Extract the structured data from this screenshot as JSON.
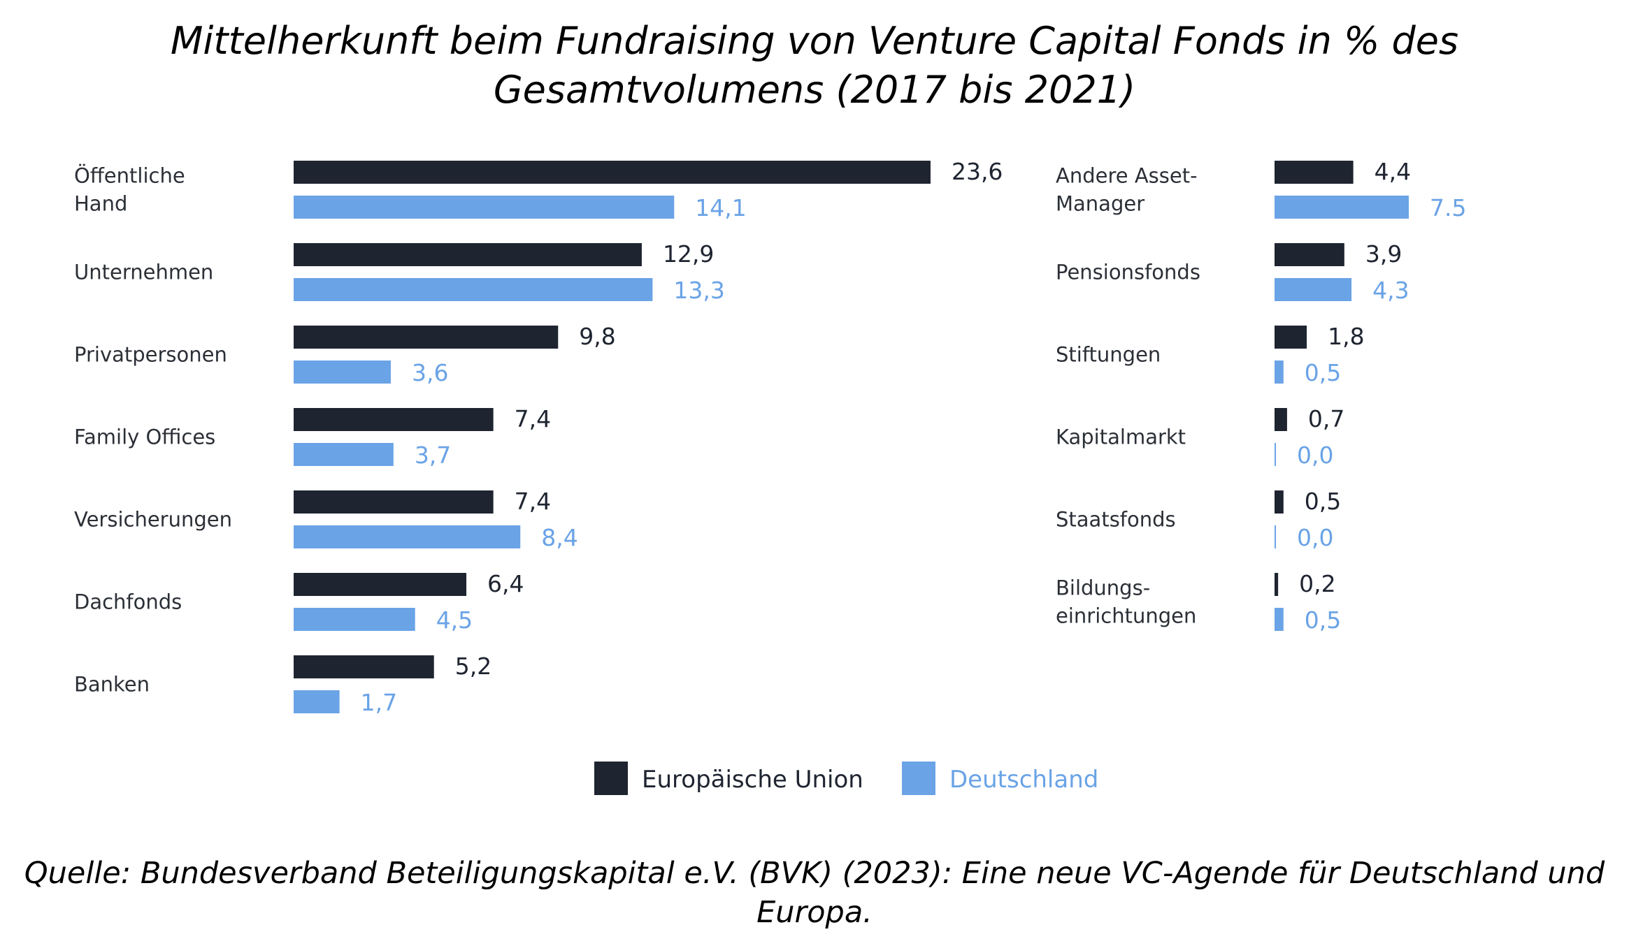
{
  "title": "Mittelherkunft beim Fundraising von Venture Capital Fonds in % des Gesamtvolumens (2017 bis 2021)",
  "source": "Quelle: Bundesverband Beteiligungskapital e.V. (BVK) (2023): Eine neue VC-Agende für Deutschland und Europa.",
  "colors": {
    "eu": "#1e2430",
    "de": "#6aa3e6"
  },
  "chart_data": {
    "type": "bar",
    "orientation": "horizontal",
    "legend": [
      "Europäische Union",
      "Deutschland"
    ],
    "legend_position": "bottom-center",
    "grid": false,
    "panels": [
      {
        "categories": [
          "Öffentliche Hand",
          "Unternehmen",
          "Privatpersonen",
          "Family Offices",
          "Versicherungen",
          "Dachfonds",
          "Banken"
        ],
        "series": [
          {
            "name": "Europäische Union",
            "values": [
              23.6,
              12.9,
              9.8,
              7.4,
              7.4,
              6.4,
              5.2
            ],
            "labels": [
              "23,6",
              "12,9",
              "9,8",
              "7,4",
              "7,4",
              "6,4",
              "5,2"
            ]
          },
          {
            "name": "Deutschland",
            "values": [
              14.1,
              13.3,
              3.6,
              3.7,
              8.4,
              4.5,
              1.7
            ],
            "labels": [
              "14,1",
              "13,3",
              "3,6",
              "3,7",
              "8,4",
              "4,5",
              "1,7"
            ]
          }
        ]
      },
      {
        "categories": [
          "Andere Asset-Manager",
          "Pensionsfonds",
          "Stiftungen",
          "Kapitalmarkt",
          "Staatsfonds",
          "Bildungseinrichtungen"
        ],
        "category_lines": [
          [
            "Andere Asset-",
            "Manager"
          ],
          [
            "Pensionsfonds"
          ],
          [
            "Stiftungen"
          ],
          [
            "Kapitalmarkt"
          ],
          [
            "Staatsfonds"
          ],
          [
            "Bildungs-",
            "einrichtungen"
          ]
        ],
        "series": [
          {
            "name": "Europäische Union",
            "values": [
              4.4,
              3.9,
              1.8,
              0.7,
              0.5,
              0.2
            ],
            "labels": [
              "4,4",
              "3,9",
              "1,8",
              "0,7",
              "0,5",
              "0,2"
            ]
          },
          {
            "name": "Deutschland",
            "values": [
              7.5,
              4.3,
              0.5,
              0.0,
              0.0,
              0.5
            ],
            "labels": [
              "7.5",
              "4,3",
              "0,5",
              "0,0",
              "0,0",
              "0,5"
            ]
          }
        ]
      }
    ]
  }
}
